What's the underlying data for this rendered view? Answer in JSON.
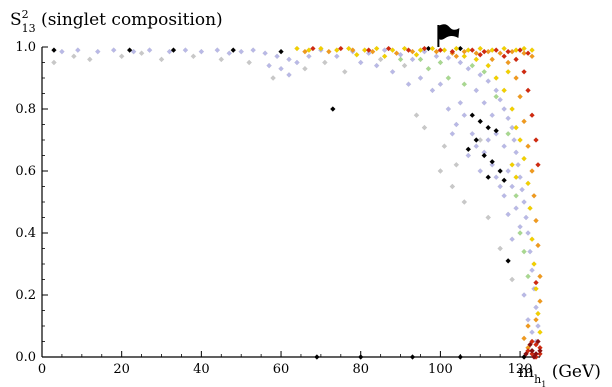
{
  "chart_data": {
    "type": "scatter",
    "title": "",
    "ylabel_main": "S",
    "ylabel_sup": "2",
    "ylabel_sub": "13",
    "ylabel_rest": " (singlet composition)",
    "xlabel_main": "m",
    "xlabel_sub": "h",
    "xlabel_sub2": "1",
    "xlabel_rest": " (GeV)",
    "xlim": [
      0,
      125
    ],
    "ylim": [
      0.0,
      1.0
    ],
    "x_ticks": [
      0,
      20,
      40,
      60,
      80,
      100,
      120
    ],
    "x_tick_labels": [
      "0",
      "20",
      "40",
      "60",
      "80",
      "100",
      "120"
    ],
    "y_ticks": [
      0.0,
      0.2,
      0.4,
      0.6,
      0.8,
      1.0
    ],
    "y_tick_labels": [
      "0.0",
      "0.2",
      "0.4",
      "0.6",
      "0.8",
      "1.0"
    ],
    "grid": false,
    "legend": "none",
    "flag_marker": {
      "x": 101,
      "y": 1.0
    },
    "colors": {
      "lavender": "#b9b9e6",
      "grey": "#c8c8c8",
      "black": "#000000",
      "yellow": "#f2d000",
      "orange": "#f09a1e",
      "red": "#d02a10",
      "darkred": "#8c0f0f",
      "green": "#a8d890"
    },
    "series": [
      {
        "color_key": "lavender",
        "points": [
          [
            5,
            0.985
          ],
          [
            9,
            0.99
          ],
          [
            14,
            0.985
          ],
          [
            18,
            0.99
          ],
          [
            23,
            0.985
          ],
          [
            27,
            0.99
          ],
          [
            32,
            0.985
          ],
          [
            36,
            0.99
          ],
          [
            40,
            0.985
          ],
          [
            44,
            0.99
          ],
          [
            47,
            0.98
          ],
          [
            50,
            0.985
          ],
          [
            53,
            0.99
          ],
          [
            56,
            0.98
          ],
          [
            59,
            0.97
          ],
          [
            62,
            0.96
          ],
          [
            64,
            0.95
          ],
          [
            67,
            0.97
          ],
          [
            70,
            0.99
          ],
          [
            74,
            0.97
          ],
          [
            78,
            0.985
          ],
          [
            82,
            0.98
          ],
          [
            86,
            0.99
          ],
          [
            90,
            0.975
          ],
          [
            93,
            0.96
          ],
          [
            96,
            0.985
          ],
          [
            99,
            0.97
          ],
          [
            102,
            0.965
          ],
          [
            105,
            0.95
          ],
          [
            107,
            0.93
          ],
          [
            110,
            0.91
          ],
          [
            112,
            0.89
          ],
          [
            114,
            0.86
          ],
          [
            115,
            0.83
          ],
          [
            116,
            0.8
          ],
          [
            117,
            0.77
          ],
          [
            118,
            0.74
          ],
          [
            118.5,
            0.7
          ],
          [
            119,
            0.66
          ],
          [
            119.5,
            0.62
          ],
          [
            120,
            0.58
          ],
          [
            120.5,
            0.54
          ],
          [
            121,
            0.5
          ],
          [
            121.5,
            0.45
          ],
          [
            122,
            0.4
          ],
          [
            122.5,
            0.34
          ],
          [
            123,
            0.28
          ],
          [
            123.5,
            0.22
          ],
          [
            124,
            0.16
          ],
          [
            124.5,
            0.1
          ],
          [
            123,
            0.08
          ],
          [
            124,
            0.05
          ],
          [
            122,
            0.12
          ],
          [
            121,
            0.2
          ],
          [
            112,
            0.7
          ],
          [
            111,
            0.66
          ],
          [
            113,
            0.62
          ],
          [
            110,
            0.6
          ],
          [
            114,
            0.58
          ],
          [
            115,
            0.55
          ],
          [
            116,
            0.52
          ],
          [
            108,
            0.72
          ],
          [
            109,
            0.68
          ],
          [
            106,
            0.78
          ],
          [
            105,
            0.82
          ],
          [
            104,
            0.75
          ],
          [
            107,
            0.65
          ],
          [
            100,
            0.88
          ],
          [
            98,
            0.86
          ],
          [
            95,
            0.9
          ],
          [
            92,
            0.88
          ],
          [
            88,
            0.92
          ],
          [
            84,
            0.94
          ],
          [
            80,
            0.95
          ],
          [
            102,
            0.8
          ],
          [
            103,
            0.72
          ],
          [
            117,
            0.6
          ],
          [
            118,
            0.55
          ],
          [
            119,
            0.48
          ],
          [
            120,
            0.42
          ],
          [
            116,
            0.68
          ],
          [
            114,
            0.72
          ],
          [
            113,
            0.78
          ],
          [
            111,
            0.82
          ],
          [
            109,
            0.86
          ],
          [
            60,
            0.93
          ],
          [
            62,
            0.91
          ],
          [
            57,
            0.94
          ],
          [
            117,
            0.46
          ],
          [
            118,
            0.38
          ]
        ]
      },
      {
        "color_key": "grey",
        "points": [
          [
            3,
            0.95
          ],
          [
            8,
            0.97
          ],
          [
            12,
            0.96
          ],
          [
            20,
            0.97
          ],
          [
            25,
            0.98
          ],
          [
            30,
            0.96
          ],
          [
            38,
            0.97
          ],
          [
            45,
            0.96
          ],
          [
            52,
            0.95
          ],
          [
            58,
            0.9
          ],
          [
            66,
            0.93
          ],
          [
            71,
            0.95
          ],
          [
            76,
            0.92
          ],
          [
            85,
            0.96
          ],
          [
            91,
            0.94
          ],
          [
            100,
            0.6
          ],
          [
            103,
            0.55
          ],
          [
            106,
            0.5
          ],
          [
            96,
            0.74
          ],
          [
            94,
            0.78
          ],
          [
            110,
            0.7
          ],
          [
            112,
            0.45
          ],
          [
            115,
            0.35
          ],
          [
            118,
            0.25
          ],
          [
            101,
            0.68
          ],
          [
            104,
            0.62
          ]
        ]
      },
      {
        "color_key": "black",
        "points": [
          [
            3,
            0.99
          ],
          [
            22,
            0.99
          ],
          [
            33,
            0.99
          ],
          [
            48,
            0.99
          ],
          [
            60,
            0.985
          ],
          [
            73,
            0.8
          ],
          [
            97,
            0.995
          ],
          [
            105,
            0.995
          ],
          [
            108,
            0.78
          ],
          [
            110,
            0.76
          ],
          [
            112,
            0.74
          ],
          [
            109,
            0.7
          ],
          [
            111,
            0.65
          ],
          [
            113,
            0.63
          ],
          [
            107,
            0.67
          ],
          [
            115,
            0.6
          ],
          [
            114,
            0.73
          ],
          [
            116,
            0.57
          ],
          [
            112,
            0.58
          ],
          [
            117,
            0.31
          ],
          [
            123,
            0.02
          ],
          [
            121,
            0.0
          ],
          [
            69,
            0.0
          ],
          [
            80,
            0.0
          ],
          [
            93,
            0.0
          ],
          [
            105,
            0.0
          ]
        ]
      },
      {
        "color_key": "yellow",
        "points": [
          [
            64,
            0.995
          ],
          [
            67,
            0.99
          ],
          [
            70,
            0.995
          ],
          [
            74,
            0.99
          ],
          [
            77,
            0.995
          ],
          [
            81,
            0.99
          ],
          [
            84,
            0.995
          ],
          [
            88,
            0.99
          ],
          [
            91,
            0.995
          ],
          [
            95,
            0.99
          ],
          [
            98,
            0.995
          ],
          [
            101,
            0.99
          ],
          [
            104,
            0.995
          ],
          [
            107,
            0.99
          ],
          [
            110,
            0.995
          ],
          [
            113,
            0.99
          ],
          [
            116,
            0.995
          ],
          [
            119,
            0.99
          ],
          [
            121,
            0.995
          ],
          [
            123,
            0.99
          ],
          [
            112,
            0.94
          ],
          [
            114,
            0.9
          ],
          [
            116,
            0.86
          ],
          [
            118,
            0.8
          ],
          [
            119,
            0.74
          ],
          [
            120,
            0.7
          ],
          [
            121,
            0.64
          ],
          [
            122,
            0.56
          ],
          [
            122.5,
            0.48
          ],
          [
            123,
            0.38
          ],
          [
            123.5,
            0.3
          ],
          [
            124,
            0.22
          ],
          [
            124.5,
            0.14
          ],
          [
            125,
            0.08
          ],
          [
            118,
            0.62
          ],
          [
            119,
            0.58
          ],
          [
            117,
            0.92
          ],
          [
            109,
            0.96
          ],
          [
            106,
            0.97
          ],
          [
            86,
            0.97
          ],
          [
            94,
            0.975
          ],
          [
            79,
            0.975
          ]
        ]
      },
      {
        "color_key": "orange",
        "points": [
          [
            66,
            0.985
          ],
          [
            72,
            0.985
          ],
          [
            78,
            0.99
          ],
          [
            83,
            0.985
          ],
          [
            89,
            0.98
          ],
          [
            93,
            0.985
          ],
          [
            99,
            0.985
          ],
          [
            103,
            0.98
          ],
          [
            106,
            0.985
          ],
          [
            109,
            0.98
          ],
          [
            112,
            0.985
          ],
          [
            115,
            0.98
          ],
          [
            118,
            0.985
          ],
          [
            121,
            0.98
          ],
          [
            123,
            0.97
          ],
          [
            117,
            0.95
          ],
          [
            119,
            0.9
          ],
          [
            120,
            0.84
          ],
          [
            121,
            0.76
          ],
          [
            122,
            0.68
          ],
          [
            123,
            0.6
          ],
          [
            123.5,
            0.52
          ],
          [
            124,
            0.44
          ],
          [
            124.5,
            0.36
          ],
          [
            125,
            0.26
          ],
          [
            125,
            0.18
          ],
          [
            124,
            0.12
          ],
          [
            122,
            0.1
          ],
          [
            121,
            0.06
          ],
          [
            122,
            0.03
          ],
          [
            113,
            0.96
          ],
          [
            104,
            0.97
          ]
        ]
      },
      {
        "color_key": "red",
        "points": [
          [
            68,
            0.995
          ],
          [
            75,
            0.995
          ],
          [
            82,
            0.99
          ],
          [
            87,
            0.995
          ],
          [
            92,
            0.99
          ],
          [
            96,
            0.995
          ],
          [
            100,
            0.99
          ],
          [
            103,
            0.985
          ],
          [
            108,
            0.99
          ],
          [
            111,
            0.985
          ],
          [
            114,
            0.99
          ],
          [
            117,
            0.985
          ],
          [
            120,
            0.99
          ],
          [
            122,
            0.98
          ],
          [
            119,
            0.96
          ],
          [
            121,
            0.92
          ],
          [
            122,
            0.86
          ],
          [
            123,
            0.78
          ],
          [
            124,
            0.7
          ],
          [
            124.5,
            0.62
          ],
          [
            124,
            0.24
          ],
          [
            123,
            0.05
          ],
          [
            124,
            0.04
          ],
          [
            125,
            0.03
          ],
          [
            122,
            0.02
          ],
          [
            124,
            0.0
          ],
          [
            123,
            0.01
          ],
          [
            125,
            0.01
          ],
          [
            116,
            0.97
          ],
          [
            110,
            0.975
          ]
        ]
      },
      {
        "color_key": "darkred",
        "points": [
          [
            123,
            0.02
          ],
          [
            124,
            0.01
          ],
          [
            122.5,
            0.04
          ],
          [
            124.5,
            0.05
          ],
          [
            123.5,
            0.0
          ],
          [
            125,
            0.02
          ],
          [
            121.5,
            0.01
          ]
        ]
      },
      {
        "color_key": "green",
        "points": [
          [
            90,
            0.96
          ],
          [
            97,
            0.93
          ],
          [
            102,
            0.9
          ],
          [
            106,
            0.88
          ],
          [
            111,
            0.92
          ],
          [
            114,
            0.84
          ],
          [
            117,
            0.72
          ],
          [
            119,
            0.52
          ],
          [
            120,
            0.4
          ],
          [
            121,
            0.34
          ],
          [
            122,
            0.26
          ],
          [
            108,
            0.94
          ],
          [
            100,
            0.95
          ],
          [
            95,
            0.96
          ]
        ]
      }
    ]
  }
}
